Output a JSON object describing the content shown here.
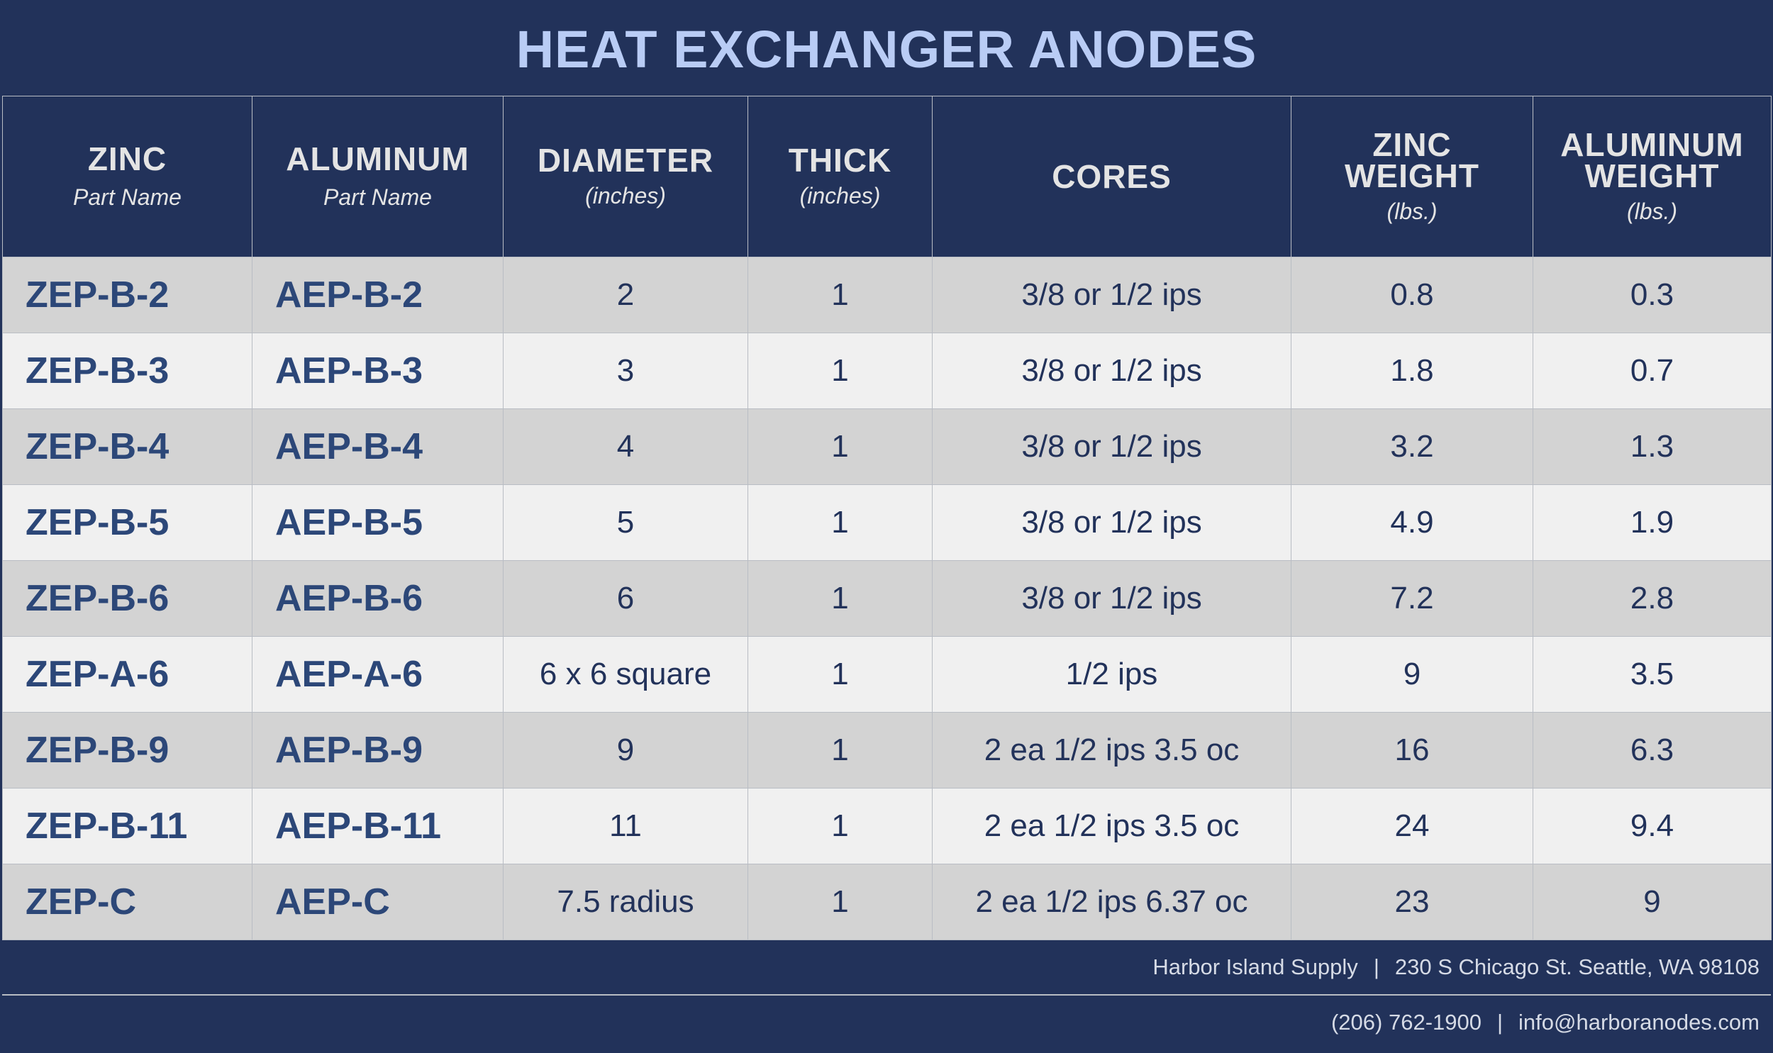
{
  "title": "HEAT EXCHANGER ANODES",
  "columns": [
    {
      "main": "ZINC",
      "sub": "Part Name"
    },
    {
      "main": "ALUMINUM",
      "sub": "Part Name"
    },
    {
      "main": "DIAMETER",
      "sub": "(inches)"
    },
    {
      "main": "THICK",
      "sub": "(inches)"
    },
    {
      "main": "CORES",
      "sub": ""
    },
    {
      "main1": "ZINC",
      "main2": "WEIGHT",
      "sub": "(lbs.)"
    },
    {
      "main1": "ALUMINUM",
      "main2": "WEIGHT",
      "sub": "(lbs.)"
    }
  ],
  "rows": [
    {
      "zinc": "ZEP-B-2",
      "aluminum": "AEP-B-2",
      "diameter": "2",
      "thick": "1",
      "cores": "3/8 or 1/2 ips",
      "zinc_weight": "0.8",
      "aluminum_weight": "0.3"
    },
    {
      "zinc": "ZEP-B-3",
      "aluminum": "AEP-B-3",
      "diameter": "3",
      "thick": "1",
      "cores": "3/8 or 1/2 ips",
      "zinc_weight": "1.8",
      "aluminum_weight": "0.7"
    },
    {
      "zinc": "ZEP-B-4",
      "aluminum": "AEP-B-4",
      "diameter": "4",
      "thick": "1",
      "cores": "3/8 or 1/2 ips",
      "zinc_weight": "3.2",
      "aluminum_weight": "1.3"
    },
    {
      "zinc": "ZEP-B-5",
      "aluminum": "AEP-B-5",
      "diameter": "5",
      "thick": "1",
      "cores": "3/8 or 1/2 ips",
      "zinc_weight": "4.9",
      "aluminum_weight": "1.9"
    },
    {
      "zinc": "ZEP-B-6",
      "aluminum": "AEP-B-6",
      "diameter": "6",
      "thick": "1",
      "cores": "3/8 or 1/2 ips",
      "zinc_weight": "7.2",
      "aluminum_weight": "2.8"
    },
    {
      "zinc": "ZEP-A-6",
      "aluminum": "AEP-A-6",
      "diameter": "6 x 6 square",
      "thick": "1",
      "cores": "1/2 ips",
      "zinc_weight": "9",
      "aluminum_weight": "3.5"
    },
    {
      "zinc": "ZEP-B-9",
      "aluminum": "AEP-B-9",
      "diameter": "9",
      "thick": "1",
      "cores": "2 ea 1/2 ips 3.5 oc",
      "zinc_weight": "16",
      "aluminum_weight": "6.3"
    },
    {
      "zinc": "ZEP-B-11",
      "aluminum": "AEP-B-11",
      "diameter": "11",
      "thick": "1",
      "cores": "2 ea 1/2 ips 3.5 oc",
      "zinc_weight": "24",
      "aluminum_weight": "9.4"
    },
    {
      "zinc": "ZEP-C",
      "aluminum": "AEP-C",
      "diameter": "7.5 radius",
      "thick": "1",
      "cores": "2 ea 1/2 ips 6.37 oc",
      "zinc_weight": "23",
      "aluminum_weight": "9"
    }
  ],
  "footer": {
    "company": "Harbor Island Supply",
    "address": "230 S Chicago St. Seattle, WA 98108",
    "phone": "(206) 762-1900",
    "email": "info@harboranodes.com",
    "separator": "|"
  },
  "colors": {
    "navy": "#22325a",
    "title_text": "#b9ccf5",
    "part_text": "#2c4778",
    "row_shade": "#d3d3d3",
    "row_light": "#f0f0f0"
  }
}
